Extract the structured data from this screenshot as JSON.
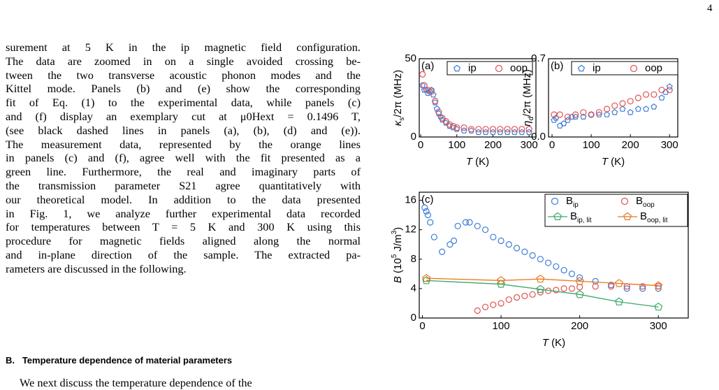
{
  "page_number": "4",
  "body_lines": [
    "surement at 5 K in the ip magnetic field configuration.",
    "The data are zoomed in on a single avoided crossing be-",
    "tween the two transverse acoustic phonon modes and the",
    "Kittel mode. Panels (b) and (e) show the corresponding",
    "fit of Eq. (1) to the experimental data, while panels (c)",
    "and (f) display an exemplary cut at μ0Hext = 0.1496 T,",
    "(see black dashed lines in panels (a), (b), (d) and (e)).",
    "The measurement data, represented by the orange lines",
    "in panels (c) and (f), agree well with the fit presented as a",
    "green line. Furthermore, the real and imaginary parts of",
    "the transmission parameter S21 agree quantitatively with",
    "our theoretical model. In addition to the data presented",
    "in Fig. 1, we analyze further experimental data recorded",
    "for temperatures between T = 5 K and 300 K using this",
    "procedure for magnetic fields aligned along the normal",
    "and in-plane direction of the sample. The extracted pa-",
    "rameters are discussed in the following."
  ],
  "section_heading": "B.   Temperature dependence of material parameters",
  "next_line": "We next discuss the temperature dependence of the",
  "chart_data": [
    {
      "type": "scatter",
      "panel": "(a)",
      "ylabel_parts": [
        "κ",
        "s",
        "/2π (MHz)"
      ],
      "xlabel_parts": [
        "T",
        " (K)"
      ],
      "xlim": [
        -4,
        319
      ],
      "xticks": [
        0,
        100,
        200,
        300
      ],
      "ylim": [
        0,
        50
      ],
      "yticks": [
        0,
        50
      ],
      "series": [
        {
          "name": "ip",
          "color": "#3b7dd8",
          "marker": "pentagon",
          "x": [
            5,
            10,
            15,
            20,
            25,
            30,
            35,
            40,
            45,
            50,
            55,
            60,
            70,
            80,
            90,
            100,
            120,
            140,
            160,
            180,
            200,
            220,
            240,
            260,
            280,
            300
          ],
          "values": [
            33,
            30,
            30,
            28,
            29,
            30,
            27,
            22,
            18,
            15,
            13,
            11,
            9,
            7,
            6,
            5,
            4,
            4,
            3,
            3,
            3,
            3,
            3,
            3,
            3,
            3
          ]
        },
        {
          "name": "oop",
          "color": "#e05050",
          "marker": "circle",
          "x": [
            5,
            10,
            20,
            30,
            40,
            50,
            60,
            70,
            80,
            90,
            100,
            120,
            140,
            160,
            180,
            200,
            220,
            240,
            260,
            280,
            300
          ],
          "values": [
            40,
            33,
            30,
            29,
            23,
            16,
            12,
            10,
            8,
            7,
            6,
            6,
            5,
            5,
            5,
            5,
            5,
            5,
            5,
            5,
            5
          ]
        }
      ]
    },
    {
      "type": "scatter",
      "panel": "(b)",
      "ylabel_parts": [
        "η",
        "d",
        "/2π (MHz)"
      ],
      "xlabel_parts": [
        "T",
        " (K)"
      ],
      "xlim": [
        -9,
        321
      ],
      "xticks": [
        0,
        100,
        200,
        300
      ],
      "ylim": [
        0,
        0.7
      ],
      "yticks": [
        {
          "value": 0,
          "label": "0.0"
        },
        0.7
      ],
      "series": [
        {
          "name": "ip",
          "color": "#3b7dd8",
          "marker": "pentagon",
          "x": [
            5,
            10,
            20,
            30,
            40,
            50,
            60,
            80,
            100,
            120,
            140,
            160,
            180,
            200,
            220,
            240,
            260,
            280,
            290,
            300
          ],
          "values": [
            0.15,
            0.17,
            0.1,
            0.12,
            0.15,
            0.18,
            0.18,
            0.18,
            0.2,
            0.2,
            0.2,
            0.22,
            0.25,
            0.22,
            0.25,
            0.25,
            0.27,
            0.35,
            0.4,
            0.45
          ]
        },
        {
          "name": "oop",
          "color": "#e05050",
          "marker": "circle",
          "x": [
            5,
            20,
            40,
            60,
            80,
            100,
            120,
            140,
            160,
            180,
            200,
            220,
            240,
            260,
            280,
            300
          ],
          "values": [
            0.2,
            0.2,
            0.18,
            0.2,
            0.22,
            0.2,
            0.22,
            0.25,
            0.28,
            0.3,
            0.32,
            0.35,
            0.38,
            0.38,
            0.42,
            0.42
          ]
        }
      ]
    },
    {
      "type": "scatter",
      "panel": "(c)",
      "ylabel_parts": [
        "B",
        " (10",
        "5",
        " J/m",
        "3",
        ")"
      ],
      "xlabel_parts": [
        "T",
        " (K)"
      ],
      "xlim": [
        -4,
        338
      ],
      "xticks": [
        0,
        100,
        200,
        300
      ],
      "ylim": [
        0,
        17.1
      ],
      "yticks": [
        0,
        4,
        8,
        12,
        16
      ],
      "series": [
        {
          "name": "B",
          "subscript": "ip",
          "color": "#3b7dd8",
          "marker": "circle",
          "x": [
            3,
            5,
            7,
            10,
            15,
            25,
            35,
            40,
            45,
            55,
            60,
            70,
            80,
            90,
            100,
            110,
            120,
            130,
            140,
            150,
            160,
            170,
            180,
            190,
            200,
            220,
            240,
            260,
            280,
            300
          ],
          "values": [
            15,
            14.5,
            14,
            13,
            11,
            9,
            10,
            10.5,
            12.5,
            13,
            13,
            12.5,
            12,
            11,
            10.5,
            10,
            9.5,
            9,
            8.5,
            8,
            7.5,
            7,
            6.5,
            6,
            5.5,
            5,
            4.5,
            4,
            4,
            4
          ]
        },
        {
          "name": "B",
          "subscript": "oop",
          "color": "#e05050",
          "marker": "circle",
          "x": [
            70,
            80,
            90,
            100,
            110,
            120,
            130,
            140,
            150,
            160,
            170,
            180,
            190,
            200,
            220,
            240,
            260,
            280,
            300
          ],
          "values": [
            1,
            1.5,
            1.8,
            2,
            2.5,
            2.8,
            3,
            3.2,
            3.5,
            3.7,
            3.8,
            4,
            4,
            4.2,
            4.3,
            4.3,
            4.3,
            4.3,
            4.3
          ]
        },
        {
          "name": "B",
          "subscript": "ip, lit",
          "color": "#3aa86a",
          "marker": "pentagon",
          "line": true,
          "x": [
            5,
            100,
            150,
            200,
            250,
            300
          ],
          "values": [
            5.1,
            4.6,
            3.9,
            3.2,
            2.2,
            1.5
          ]
        },
        {
          "name": "B",
          "subscript": "oop, lit",
          "color": "#e8761e",
          "marker": "pentagon",
          "line": true,
          "x": [
            5,
            100,
            150,
            200,
            250,
            300
          ],
          "values": [
            5.4,
            5.1,
            5.3,
            5,
            4.7,
            4.4
          ]
        }
      ]
    }
  ]
}
